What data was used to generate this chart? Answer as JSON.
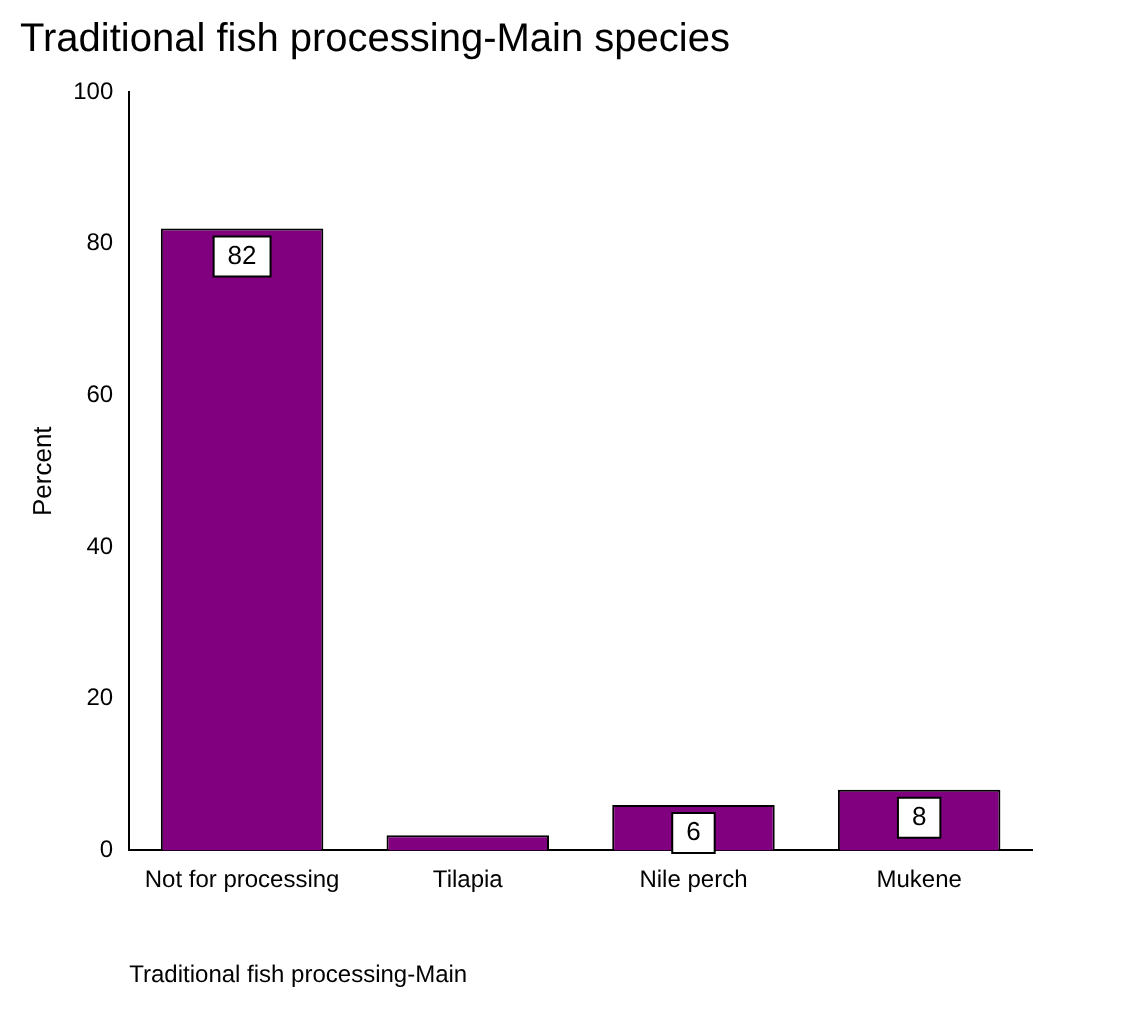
{
  "chart_data": {
    "type": "bar",
    "title": "Traditional fish processing-Main species",
    "xlabel": "Traditional fish processing-Main",
    "ylabel": "Percent",
    "categories": [
      "Not for processing",
      "Tilapia",
      "Nile perch",
      "Mukene"
    ],
    "values": [
      82,
      2,
      6,
      8
    ],
    "value_labels": [
      "82",
      null,
      "6",
      "8"
    ],
    "color": "#800080",
    "ylim": [
      0,
      100
    ],
    "yticks": [
      0,
      20,
      40,
      60,
      80,
      100
    ],
    "grid": false,
    "legend": false
  }
}
